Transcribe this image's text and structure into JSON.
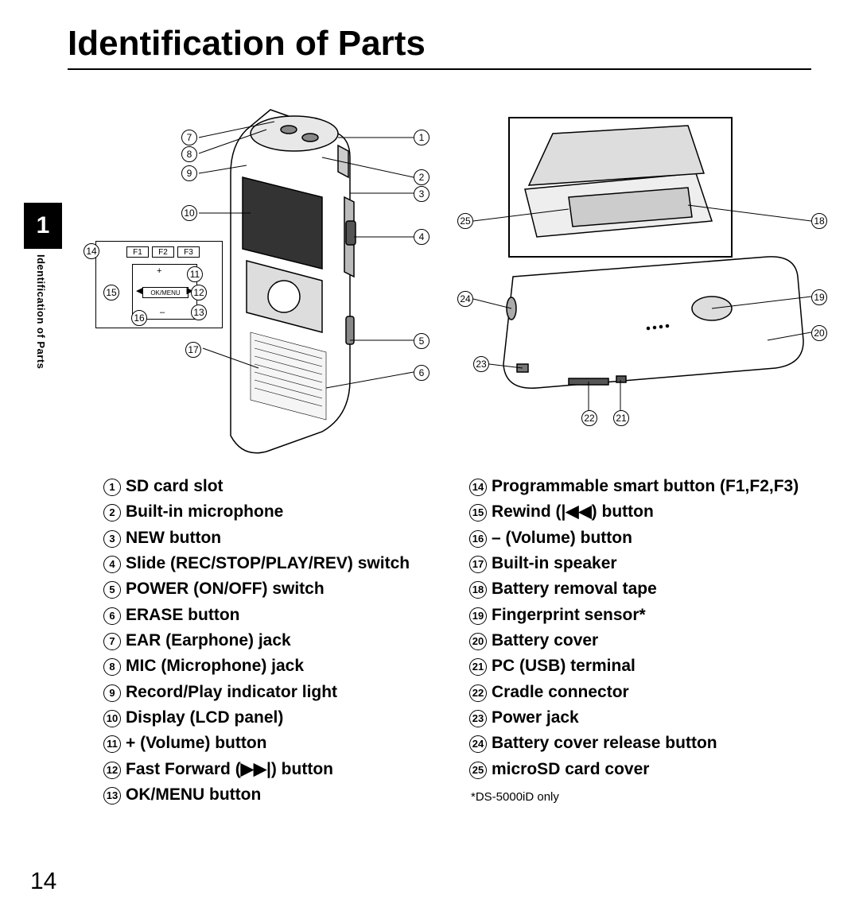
{
  "title": "Identification of Parts",
  "chapter_tab": "1",
  "side_label": "Identification of Parts",
  "page_number": "14",
  "footnote": "*DS-5000iD only",
  "inset_keys": {
    "f1": "F1",
    "f2": "F2",
    "f3": "F3",
    "ok": "OK/MENU",
    "plus": "+"
  },
  "left_list": [
    {
      "n": "1",
      "t": "SD card slot"
    },
    {
      "n": "2",
      "t": "Built-in microphone"
    },
    {
      "n": "3",
      "t": "NEW button"
    },
    {
      "n": "4",
      "t": "Slide (REC/STOP/PLAY/REV) switch"
    },
    {
      "n": "5",
      "t": "POWER (ON/OFF) switch"
    },
    {
      "n": "6",
      "t": "ERASE button"
    },
    {
      "n": "7",
      "t": "EAR (Earphone)  jack"
    },
    {
      "n": "8",
      "t": "MIC (Microphone) jack"
    },
    {
      "n": "9",
      "t": "Record/Play indicator light"
    },
    {
      "n": "10",
      "t": "Display (LCD panel)"
    },
    {
      "n": "11",
      "t": "+ (Volume) button"
    },
    {
      "n": "12",
      "t": "Fast Forward (▶▶|) button"
    },
    {
      "n": "13",
      "t": "OK/MENU button"
    }
  ],
  "right_list": [
    {
      "n": "14",
      "t": "Programmable smart button (F1,F2,F3)"
    },
    {
      "n": "15",
      "t": "Rewind (|◀◀) button"
    },
    {
      "n": "16",
      "t": "– (Volume) button"
    },
    {
      "n": "17",
      "t": "Built-in speaker"
    },
    {
      "n": "18",
      "t": "Battery removal tape"
    },
    {
      "n": "19",
      "t": "Fingerprint sensor*"
    },
    {
      "n": "20",
      "t": "Battery cover"
    },
    {
      "n": "21",
      "t": "PC (USB) terminal"
    },
    {
      "n": "22",
      "t": "Cradle connector"
    },
    {
      "n": "23",
      "t": "Power jack"
    },
    {
      "n": "24",
      "t": "Battery cover release button"
    },
    {
      "n": "25",
      "t": "microSD card cover"
    }
  ],
  "left_callouts": {
    "c1": "1",
    "c2": "2",
    "c3": "3",
    "c4": "4",
    "c5": "5",
    "c6": "6",
    "c7": "7",
    "c8": "8",
    "c9": "9",
    "c10": "10",
    "c11": "11",
    "c12": "12",
    "c13": "13",
    "c14": "14",
    "c15": "15",
    "c16": "16",
    "c17": "17"
  },
  "right_callouts": {
    "c18": "18",
    "c19": "19",
    "c20": "20",
    "c21": "21",
    "c22": "22",
    "c23": "23",
    "c24": "24",
    "c25": "25"
  },
  "colors": {
    "text": "#000000",
    "bg": "#ffffff"
  }
}
